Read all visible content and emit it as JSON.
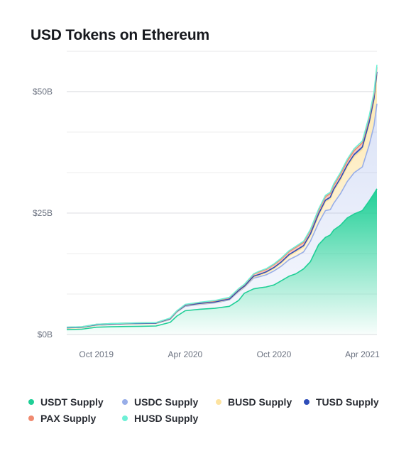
{
  "chart_data": {
    "type": "area",
    "title": "USD Tokens on Ethereum",
    "stacked": true,
    "y_unit": "USD",
    "ylim": [
      0,
      63000000000
    ],
    "y_ticks": [
      {
        "value": 0,
        "label": "$0B"
      },
      {
        "value": 25000000000,
        "label": "$25B"
      },
      {
        "value": 50000000000,
        "label": "$50B"
      }
    ],
    "x_ticks": [
      {
        "value": "2019-10-01",
        "label": "Oct 2019"
      },
      {
        "value": "2020-04-01",
        "label": "Apr 2020"
      },
      {
        "value": "2020-10-01",
        "label": "Oct 2020"
      },
      {
        "value": "2021-04-01",
        "label": "Apr 2021"
      }
    ],
    "grid": true,
    "legend_position": "bottom",
    "x": [
      "2019-08-01",
      "2019-09-01",
      "2019-10-01",
      "2019-11-01",
      "2019-12-01",
      "2020-01-01",
      "2020-02-01",
      "2020-03-01",
      "2020-03-15",
      "2020-04-01",
      "2020-05-01",
      "2020-06-01",
      "2020-07-01",
      "2020-07-20",
      "2020-08-01",
      "2020-08-20",
      "2020-09-01",
      "2020-09-15",
      "2020-10-01",
      "2020-10-15",
      "2020-11-01",
      "2020-11-15",
      "2020-12-01",
      "2020-12-15",
      "2021-01-01",
      "2021-01-15",
      "2021-01-25",
      "2021-02-01",
      "2021-02-15",
      "2021-03-01",
      "2021-03-15",
      "2021-04-01",
      "2021-04-15",
      "2021-04-25",
      "2021-05-01"
    ],
    "series": [
      {
        "name": "USDT Supply",
        "color": "#1fcf96",
        "values": [
          1.0,
          1.1,
          1.5,
          1.6,
          1.65,
          1.7,
          1.75,
          2.5,
          3.8,
          4.9,
          5.2,
          5.4,
          5.8,
          7.0,
          8.5,
          9.4,
          9.6,
          9.8,
          10.2,
          11.0,
          12.0,
          12.5,
          13.5,
          15.0,
          18.5,
          20.0,
          20.5,
          21.5,
          22.5,
          24.0,
          24.8,
          25.5,
          27.5,
          29.0,
          30.0
        ]
      },
      {
        "name": "USDC Supply",
        "color": "#98aee8",
        "values": [
          0.3,
          0.3,
          0.4,
          0.45,
          0.5,
          0.5,
          0.5,
          0.6,
          0.8,
          0.9,
          1.0,
          1.1,
          1.3,
          1.8,
          1.2,
          2.2,
          2.3,
          2.5,
          2.9,
          3.0,
          3.4,
          3.6,
          3.5,
          4.2,
          4.5,
          5.5,
          5.2,
          5.5,
          6.5,
          7.5,
          8.5,
          9.0,
          11.5,
          14.0,
          17.5
        ]
      },
      {
        "name": "BUSD Supply",
        "color": "#fde3a0",
        "values": [
          0.0,
          0.0,
          0.0,
          0.0,
          0.0,
          0.0,
          0.0,
          0.05,
          0.05,
          0.1,
          0.1,
          0.1,
          0.1,
          0.1,
          0.1,
          0.2,
          0.3,
          0.4,
          0.5,
          0.6,
          0.8,
          0.9,
          1.0,
          1.2,
          1.5,
          1.8,
          2.2,
          2.5,
          2.8,
          3.0,
          3.3,
          3.6,
          4.2,
          5.0,
          6.0
        ]
      },
      {
        "name": "TUSD Supply",
        "color": "#2e4db8",
        "values": [
          0.1,
          0.1,
          0.1,
          0.1,
          0.1,
          0.1,
          0.1,
          0.1,
          0.1,
          0.1,
          0.1,
          0.1,
          0.1,
          0.15,
          0.15,
          0.2,
          0.2,
          0.2,
          0.2,
          0.25,
          0.25,
          0.3,
          0.3,
          0.3,
          0.35,
          0.35,
          0.35,
          0.4,
          0.4,
          0.4,
          0.45,
          0.5,
          0.5,
          0.55,
          0.6
        ]
      },
      {
        "name": "PAX Supply",
        "color": "#f08a70",
        "values": [
          0.1,
          0.1,
          0.1,
          0.1,
          0.1,
          0.1,
          0.1,
          0.1,
          0.1,
          0.15,
          0.2,
          0.2,
          0.25,
          0.3,
          0.3,
          0.4,
          0.5,
          0.5,
          0.6,
          0.6,
          0.6,
          0.65,
          0.65,
          0.7,
          0.7,
          0.7,
          0.75,
          0.75,
          0.8,
          0.8,
          0.8,
          0.85,
          0.85,
          0.9,
          0.9
        ]
      },
      {
        "name": "HUSD Supply",
        "color": "#6ef0d6",
        "values": [
          0.0,
          0.0,
          0.0,
          0.0,
          0.0,
          0.0,
          0.0,
          0.05,
          0.05,
          0.05,
          0.05,
          0.1,
          0.1,
          0.1,
          0.1,
          0.1,
          0.15,
          0.15,
          0.15,
          0.2,
          0.2,
          0.2,
          0.25,
          0.25,
          0.3,
          0.3,
          0.3,
          0.35,
          0.35,
          0.4,
          0.4,
          0.4,
          0.45,
          0.45,
          0.5
        ]
      }
    ]
  }
}
